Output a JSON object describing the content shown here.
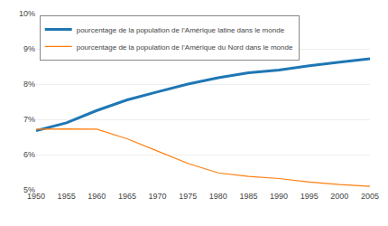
{
  "chart_data": {
    "type": "line",
    "x": [
      1950,
      1955,
      1960,
      1965,
      1970,
      1975,
      1980,
      1985,
      1990,
      1995,
      2000,
      2005
    ],
    "series": [
      {
        "name": "pourcentage de la population de l’Amérique latine dans le monde",
        "values": [
          6.68,
          6.9,
          7.25,
          7.55,
          7.78,
          8.0,
          8.18,
          8.32,
          8.4,
          8.52,
          8.62,
          8.72
        ]
      },
      {
        "name": "pourcentage de la population de l’Amérique du Nord dans le monde",
        "values": [
          6.72,
          6.73,
          6.72,
          6.45,
          6.1,
          5.75,
          5.48,
          5.38,
          5.32,
          5.22,
          5.15,
          5.1
        ]
      }
    ],
    "xlim": [
      1950,
      2005
    ],
    "xticks": [
      1950,
      1955,
      1960,
      1965,
      1970,
      1975,
      1980,
      1985,
      1990,
      1995,
      2000,
      2005
    ],
    "ylim": [
      5.0,
      10.0
    ],
    "yticks": [
      {
        "value": 5,
        "label": "5%"
      },
      {
        "value": 6,
        "label": "6%"
      },
      {
        "value": 7,
        "label": "7%"
      },
      {
        "value": 8,
        "label": "8%"
      },
      {
        "value": 9,
        "label": "9%"
      },
      {
        "value": 10,
        "label": "10%"
      }
    ],
    "grid": "y",
    "legend": "upper left"
  }
}
